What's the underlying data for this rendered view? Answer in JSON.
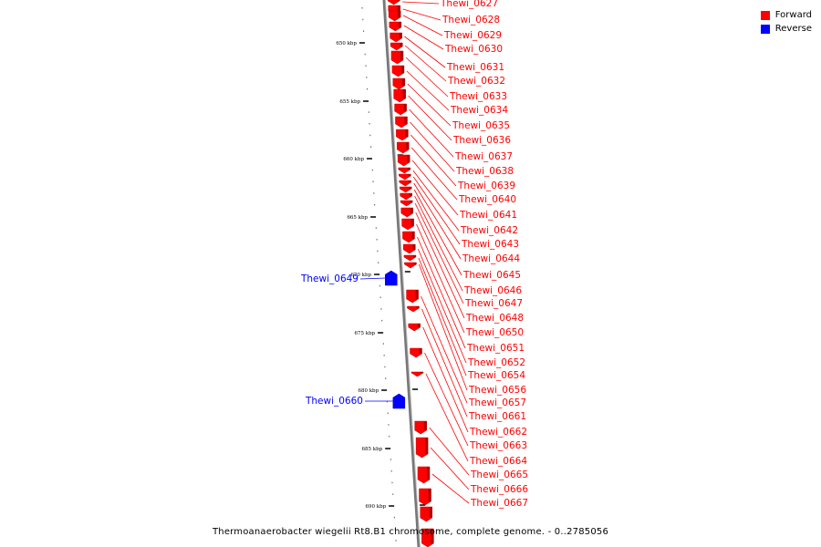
{
  "legend": {
    "forward": {
      "label": "Forward",
      "color": "#ff0000"
    },
    "reverse": {
      "label": "Reverse",
      "color": "#0000ff"
    }
  },
  "caption": "Thermoanaerobacter wiegelii Rt8.B1 chromosome, complete genome. - 0..2785056",
  "scale_ticks": [
    "650 kbp",
    "655 kbp",
    "660 kbp",
    "665 kbp",
    "670 kbp",
    "675 kbp",
    "680 kbp",
    "685 kbp",
    "690 kbp"
  ],
  "forward_genes": [
    "Thewi_0627",
    "Thewi_0628",
    "Thewi_0629",
    "Thewi_0630",
    "Thewi_0631",
    "Thewi_0632",
    "Thewi_0633",
    "Thewi_0634",
    "Thewi_0635",
    "Thewi_0636",
    "Thewi_0637",
    "Thewi_0638",
    "Thewi_0639",
    "Thewi_0640",
    "Thewi_0641",
    "Thewi_0642",
    "Thewi_0643",
    "Thewi_0644",
    "Thewi_0645",
    "Thewi_0646",
    "Thewi_0647",
    "Thewi_0648",
    "Thewi_0650",
    "Thewi_0651",
    "Thewi_0652",
    "Thewi_0654",
    "Thewi_0656",
    "Thewi_0657",
    "Thewi_0661",
    "Thewi_0662",
    "Thewi_0663",
    "Thewi_0664",
    "Thewi_0665",
    "Thewi_0666",
    "Thewi_0667"
  ],
  "reverse_genes": [
    "Thewi_0649",
    "Thewi_0660"
  ]
}
